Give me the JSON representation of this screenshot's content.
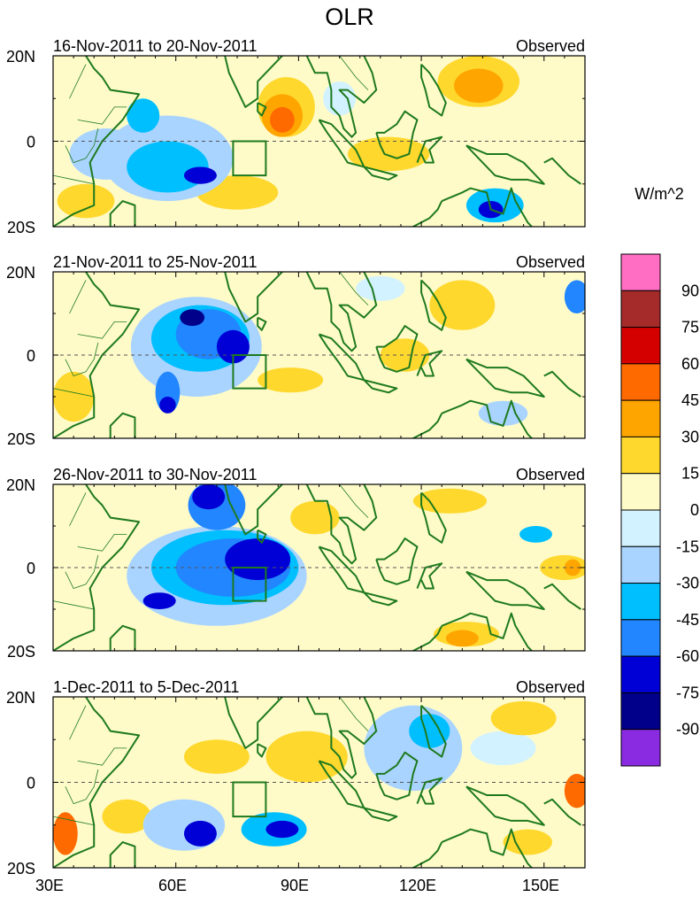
{
  "title": "OLR",
  "units": "W/m^2",
  "source_label": "Observed",
  "panels": [
    {
      "period": "16-Nov-2011 to 20-Nov-2011",
      "label": "Observed",
      "blobs": [
        {
          "lon": 43,
          "lat": -3,
          "rlon": 9,
          "rlat": 6,
          "v": -30
        },
        {
          "lon": 58,
          "lat": -4,
          "rlon": 16,
          "rlat": 10,
          "v": -30
        },
        {
          "lon": 58,
          "lat": -6,
          "rlon": 10,
          "rlat": 6,
          "v": -45
        },
        {
          "lon": 66,
          "lat": -8,
          "rlon": 4,
          "rlat": 2,
          "v": -75
        },
        {
          "lon": 52,
          "lat": 6,
          "rlon": 4,
          "rlat": 4,
          "v": -45
        },
        {
          "lon": 87,
          "lat": 8,
          "rlon": 7,
          "rlat": 7,
          "v": 15
        },
        {
          "lon": 86,
          "lat": 6,
          "rlon": 5,
          "rlat": 5,
          "v": 30
        },
        {
          "lon": 86,
          "lat": 5,
          "rlon": 3,
          "rlat": 3,
          "v": 45
        },
        {
          "lon": 134,
          "lat": 14,
          "rlon": 10,
          "rlat": 6,
          "v": 15
        },
        {
          "lon": 134,
          "lat": 13,
          "rlon": 6,
          "rlat": 4,
          "v": 30
        },
        {
          "lon": 138,
          "lat": -15,
          "rlon": 7,
          "rlat": 4,
          "v": -45
        },
        {
          "lon": 137,
          "lat": -16,
          "rlon": 3,
          "rlat": 2,
          "v": -75
        },
        {
          "lon": 112,
          "lat": -3,
          "rlon": 10,
          "rlat": 4,
          "v": 15
        },
        {
          "lon": 75,
          "lat": -12,
          "rlon": 10,
          "rlat": 4,
          "v": 15
        },
        {
          "lon": 38,
          "lat": -14,
          "rlon": 7,
          "rlat": 4,
          "v": 15
        },
        {
          "lon": 100,
          "lat": 10,
          "rlon": 4,
          "rlat": 4,
          "v": -15
        }
      ]
    },
    {
      "period": "21-Nov-2011 to 25-Nov-2011",
      "label": "Observed",
      "blobs": [
        {
          "lon": 65,
          "lat": 2,
          "rlon": 16,
          "rlat": 12,
          "v": -30
        },
        {
          "lon": 66,
          "lat": 4,
          "rlon": 12,
          "rlat": 8,
          "v": -45
        },
        {
          "lon": 68,
          "lat": 5,
          "rlon": 8,
          "rlat": 6,
          "v": -60
        },
        {
          "lon": 64,
          "lat": 9,
          "rlon": 3,
          "rlat": 2,
          "v": -90
        },
        {
          "lon": 74,
          "lat": 2,
          "rlon": 4,
          "rlat": 4,
          "v": -75
        },
        {
          "lon": 58,
          "lat": -9,
          "rlon": 3,
          "rlat": 5,
          "v": -60
        },
        {
          "lon": 58,
          "lat": -12,
          "rlon": 2,
          "rlat": 2,
          "v": -75
        },
        {
          "lon": 116,
          "lat": 0,
          "rlon": 6,
          "rlat": 4,
          "v": 15
        },
        {
          "lon": 130,
          "lat": 12,
          "rlon": 8,
          "rlat": 6,
          "v": 15
        },
        {
          "lon": 158,
          "lat": 14,
          "rlon": 3,
          "rlat": 4,
          "v": -60
        },
        {
          "lon": 140,
          "lat": -14,
          "rlon": 6,
          "rlat": 3,
          "v": -30
        },
        {
          "lon": 35,
          "lat": -10,
          "rlon": 5,
          "rlat": 6,
          "v": 15
        },
        {
          "lon": 88,
          "lat": -6,
          "rlon": 8,
          "rlat": 3,
          "v": 15
        },
        {
          "lon": 110,
          "lat": 16,
          "rlon": 6,
          "rlat": 3,
          "v": -15
        }
      ]
    },
    {
      "period": "26-Nov-2011 to 30-Nov-2011",
      "label": "Observed",
      "blobs": [
        {
          "lon": 70,
          "lat": -2,
          "rlon": 22,
          "rlat": 12,
          "v": -30
        },
        {
          "lon": 72,
          "lat": 0,
          "rlon": 18,
          "rlat": 9,
          "v": -45
        },
        {
          "lon": 74,
          "lat": 0,
          "rlon": 14,
          "rlat": 7,
          "v": -60
        },
        {
          "lon": 80,
          "lat": 2,
          "rlon": 8,
          "rlat": 5,
          "v": -75
        },
        {
          "lon": 70,
          "lat": 15,
          "rlon": 7,
          "rlat": 6,
          "v": -60
        },
        {
          "lon": 68,
          "lat": 17,
          "rlon": 4,
          "rlat": 3,
          "v": -75
        },
        {
          "lon": 56,
          "lat": -8,
          "rlon": 4,
          "rlat": 2,
          "v": -75
        },
        {
          "lon": 94,
          "lat": 12,
          "rlon": 6,
          "rlat": 4,
          "v": 15
        },
        {
          "lon": 127,
          "lat": 16,
          "rlon": 9,
          "rlat": 3,
          "v": 15
        },
        {
          "lon": 155,
          "lat": 0,
          "rlon": 6,
          "rlat": 3,
          "v": 15
        },
        {
          "lon": 157,
          "lat": 0,
          "rlon": 2,
          "rlat": 2,
          "v": 30
        },
        {
          "lon": 131,
          "lat": -16,
          "rlon": 8,
          "rlat": 3,
          "v": 15
        },
        {
          "lon": 130,
          "lat": -17,
          "rlon": 4,
          "rlat": 2,
          "v": 30
        },
        {
          "lon": 148,
          "lat": 8,
          "rlon": 4,
          "rlat": 2,
          "v": -45
        }
      ]
    },
    {
      "period": "1-Dec-2011 to 5-Dec-2011",
      "label": "Observed",
      "blobs": [
        {
          "lon": 62,
          "lat": -10,
          "rlon": 10,
          "rlat": 6,
          "v": -30
        },
        {
          "lon": 66,
          "lat": -12,
          "rlon": 4,
          "rlat": 3,
          "v": -75
        },
        {
          "lon": 84,
          "lat": -11,
          "rlon": 8,
          "rlat": 4,
          "v": -45
        },
        {
          "lon": 86,
          "lat": -11,
          "rlon": 4,
          "rlat": 2,
          "v": -75
        },
        {
          "lon": 118,
          "lat": 8,
          "rlon": 12,
          "rlat": 10,
          "v": -30
        },
        {
          "lon": 122,
          "lat": 12,
          "rlon": 5,
          "rlat": 4,
          "v": -45
        },
        {
          "lon": 140,
          "lat": 8,
          "rlon": 8,
          "rlat": 4,
          "v": -15
        },
        {
          "lon": 145,
          "lat": 15,
          "rlon": 8,
          "rlat": 4,
          "v": 15
        },
        {
          "lon": 92,
          "lat": 6,
          "rlon": 10,
          "rlat": 6,
          "v": 15
        },
        {
          "lon": 70,
          "lat": 6,
          "rlon": 8,
          "rlat": 4,
          "v": 15
        },
        {
          "lon": 158,
          "lat": -2,
          "rlon": 3,
          "rlat": 4,
          "v": 45
        },
        {
          "lon": 33,
          "lat": -12,
          "rlon": 3,
          "rlat": 5,
          "v": 45
        },
        {
          "lon": 48,
          "lat": -8,
          "rlon": 6,
          "rlat": 4,
          "v": 15
        },
        {
          "lon": 146,
          "lat": -14,
          "rlon": 6,
          "rlat": 3,
          "v": 15
        }
      ]
    }
  ],
  "lat_labels": [
    "20N",
    "0",
    "20S"
  ],
  "lon_labels": [
    "30E",
    "60E",
    "90E",
    "120E",
    "150E"
  ],
  "lon_ticks": [
    30,
    60,
    90,
    120,
    150
  ],
  "lat_range": [
    -20,
    20
  ],
  "lon_range": [
    30,
    160
  ],
  "box_region": {
    "lon": [
      74,
      82
    ],
    "lat": [
      -8,
      0
    ]
  },
  "colorbar": {
    "levels": [
      "90",
      "75",
      "60",
      "45",
      "30",
      "15",
      "0",
      "-15",
      "-30",
      "-45",
      "-60",
      "-75",
      "-90"
    ],
    "colors": [
      "#ff6ec3",
      "#a52a2a",
      "#d40000",
      "#ff6a00",
      "#ffa500",
      "#ffd82e",
      "#fffbc9",
      "#d2f2ff",
      "#a9d4ff",
      "#00bfff",
      "#2186ff",
      "#0000d6",
      "#00008b",
      "#8a2be2"
    ]
  },
  "colors": {
    "coast": "#1e7a1e",
    "frame": "#000000"
  }
}
